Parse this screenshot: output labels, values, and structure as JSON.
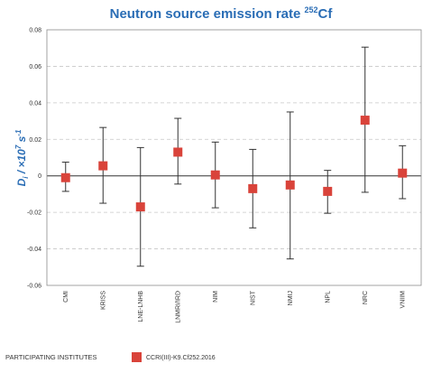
{
  "chart_data": {
    "type": "scatter",
    "title_main": "Neutron source emission rate ",
    "title_sup": "252",
    "title_tail": "Cf",
    "ylabel_main": "D",
    "ylabel_sub": "i",
    "ylabel_rest": " / ×10",
    "ylabel_sup1": "7",
    "ylabel_rest2": " s",
    "ylabel_sup2": "-1",
    "ylim": [
      -0.06,
      0.08
    ],
    "yticks": [
      0.08,
      0.06,
      0.04,
      0.02,
      0,
      -0.02,
      -0.04,
      -0.06
    ],
    "ytick_labels": [
      "0.08",
      "0.06",
      "0.04",
      "0.02",
      "0",
      "-0.02",
      "-0.04",
      "-0.06"
    ],
    "grid": true,
    "categories": [
      "CMI",
      "KRISS",
      "LNE-LNHB",
      "LNMRI/IRD",
      "NIM",
      "NIST",
      "NMIJ",
      "NPL",
      "NRC",
      "VNIIM"
    ],
    "series": [
      {
        "name": "CCRI(III)-K9.Cf252.2016",
        "color": "#d9433a",
        "values": [
          -0.001,
          0.0055,
          -0.017,
          0.013,
          0.0005,
          -0.007,
          -0.005,
          -0.0085,
          0.0305,
          0.0015
        ],
        "err_low": [
          -0.0085,
          -0.015,
          -0.0495,
          -0.0045,
          -0.0175,
          -0.0285,
          -0.0455,
          -0.0205,
          -0.009,
          -0.0125
        ],
        "err_high": [
          0.0075,
          0.0265,
          0.0155,
          0.0315,
          0.0185,
          0.0145,
          0.035,
          0.003,
          0.0705,
          0.0165
        ]
      }
    ],
    "footer_label": "PARTICIPATING INSTITUTES",
    "legend_label": "CCRI(III)-K9.Cf252.2016"
  }
}
